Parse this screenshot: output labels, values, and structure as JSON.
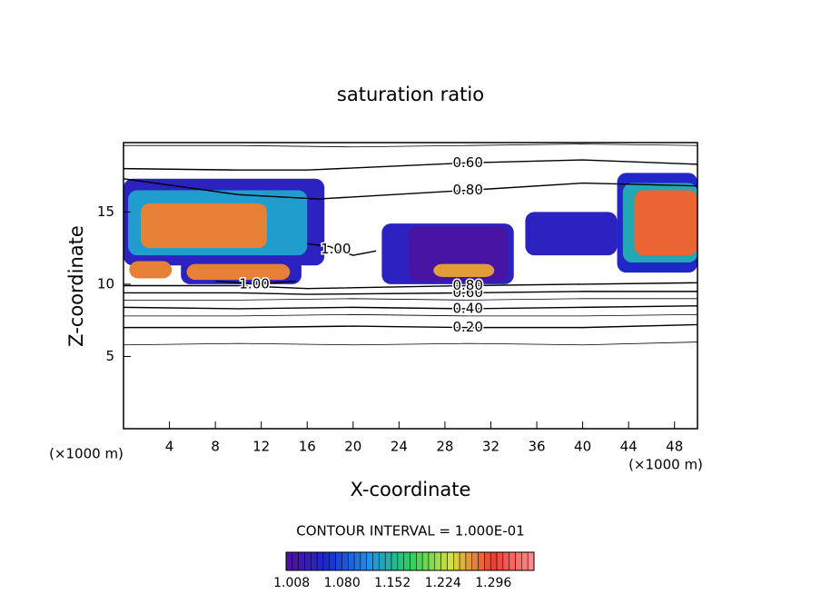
{
  "chart_data": {
    "type": "contour",
    "title": "saturation ratio",
    "x_label": "X-coordinate",
    "y_label": "Z-coordinate",
    "x_unit": "(×1000 m)",
    "y_unit": "(×1000 m)",
    "xlim": [
      0,
      50
    ],
    "ylim": [
      0,
      19.8
    ],
    "xticks": [
      4,
      8,
      12,
      16,
      20,
      24,
      28,
      32,
      36,
      40,
      44,
      48
    ],
    "yticks": [
      5,
      10,
      15
    ],
    "contour_interval": "CONTOUR INTERVAL = 1.000E-01",
    "clim": [
      1.0,
      1.354
    ],
    "colormap": [
      "#50109a",
      "#1a2ad0",
      "#1e90e8",
      "#2ad060",
      "#d8e040",
      "#f03a30",
      "#ff9090"
    ],
    "cticks": [
      {
        "value": 1.008,
        "label": "1.008"
      },
      {
        "value": 1.08,
        "label": "1.080"
      },
      {
        "value": 1.152,
        "label": "1.152"
      },
      {
        "value": 1.224,
        "label": "1.224"
      },
      {
        "value": 1.296,
        "label": "1.296"
      }
    ],
    "patches": [
      {
        "x": [
          0,
          17.5
        ],
        "y": [
          11.3,
          17.3
        ],
        "value": 1.04
      },
      {
        "x": [
          0.4,
          16
        ],
        "y": [
          12,
          16.5
        ],
        "value": 1.13
      },
      {
        "x": [
          1.5,
          12.5
        ],
        "y": [
          12.5,
          15.6
        ],
        "value": 1.27
      },
      {
        "x": [
          0.5,
          4.2
        ],
        "y": [
          10.4,
          11.6
        ],
        "value": 1.27
      },
      {
        "x": [
          5,
          15.5
        ],
        "y": [
          10,
          11.8
        ],
        "value": 1.04
      },
      {
        "x": [
          5.5,
          14.5
        ],
        "y": [
          10.3,
          11.4
        ],
        "value": 1.27
      },
      {
        "x": [
          22.5,
          34
        ],
        "y": [
          10,
          14.2
        ],
        "value": 1.04
      },
      {
        "x": [
          24.8,
          33.5
        ],
        "y": [
          10.2,
          14
        ],
        "value": 1.01
      },
      {
        "x": [
          27,
          32.3
        ],
        "y": [
          10.5,
          11.4
        ],
        "value": 1.26
      },
      {
        "x": [
          35,
          43
        ],
        "y": [
          12,
          15
        ],
        "value": 1.04
      },
      {
        "x": [
          43,
          50
        ],
        "y": [
          10.8,
          17.7
        ],
        "value": 1.05
      },
      {
        "x": [
          43.5,
          50
        ],
        "y": [
          11.5,
          17
        ],
        "value": 1.14
      },
      {
        "x": [
          44.5,
          50
        ],
        "y": [
          12,
          16.5
        ],
        "value": 1.28
      }
    ],
    "contour_lines": [
      {
        "level": 0.1,
        "x": [
          0,
          10,
          20,
          30,
          40,
          50
        ],
        "y": [
          5.8,
          5.9,
          5.8,
          5.9,
          5.8,
          6.0
        ]
      },
      {
        "level": {
          "value": 0.2,
          "label": "0.20"
        },
        "x": [
          0,
          10,
          20,
          30,
          40,
          50
        ],
        "y": [
          7.0,
          7.0,
          7.1,
          7.0,
          7.0,
          7.2
        ]
      },
      {
        "level": 0.3,
        "x": [
          0,
          10,
          20,
          30,
          40,
          50
        ],
        "y": [
          7.8,
          7.8,
          7.9,
          7.8,
          7.8,
          7.9
        ]
      },
      {
        "level": {
          "value": 0.4,
          "label": "0.40"
        },
        "x": [
          0,
          10,
          20,
          30,
          40,
          50
        ],
        "y": [
          8.4,
          8.3,
          8.4,
          8.3,
          8.4,
          8.5
        ]
      },
      {
        "level": 0.5,
        "x": [
          0,
          10,
          20,
          30,
          40,
          50
        ],
        "y": [
          8.9,
          8.9,
          9.0,
          8.9,
          9.0,
          9.0
        ]
      },
      {
        "level": {
          "value": 0.6,
          "label": "0.60"
        },
        "x": [
          0,
          10,
          16,
          30,
          40,
          50
        ],
        "y": [
          9.4,
          9.4,
          9.3,
          9.4,
          9.5,
          9.5
        ]
      },
      {
        "level": {
          "value": 0.8,
          "label": "0.80"
        },
        "x": [
          0,
          10,
          16,
          30,
          40,
          50
        ],
        "y": [
          9.9,
          9.9,
          9.7,
          9.9,
          10.0,
          10.1
        ]
      },
      {
        "level": {
          "value": 1.0,
          "label": "1.00"
        },
        "x": [
          8,
          10,
          11.4,
          13,
          15
        ],
        "y": [
          10.2,
          10.1,
          10.0,
          10.1,
          10.2
        ]
      },
      {
        "level": {
          "value": 1.0,
          "label": "1.00"
        },
        "x": [
          16,
          18,
          18.5,
          20,
          22
        ],
        "y": [
          12.8,
          12.6,
          12.4,
          12.0,
          12.3
        ]
      },
      {
        "level": 0.5,
        "x": [
          0,
          10,
          20,
          30,
          40,
          50
        ],
        "y": [
          19.6,
          19.6,
          19.5,
          19.6,
          19.7,
          19.6
        ]
      },
      {
        "level": {
          "value": 0.6,
          "label": "0.60"
        },
        "x": [
          0,
          10,
          16,
          30,
          40,
          50
        ],
        "y": [
          18.0,
          17.9,
          17.9,
          18.4,
          18.6,
          18.3
        ]
      },
      {
        "level": {
          "value": 0.8,
          "label": "0.80"
        },
        "x": [
          0,
          10,
          17,
          30,
          40,
          50
        ],
        "y": [
          17.3,
          16.2,
          15.9,
          16.5,
          17.0,
          16.8
        ]
      }
    ]
  }
}
